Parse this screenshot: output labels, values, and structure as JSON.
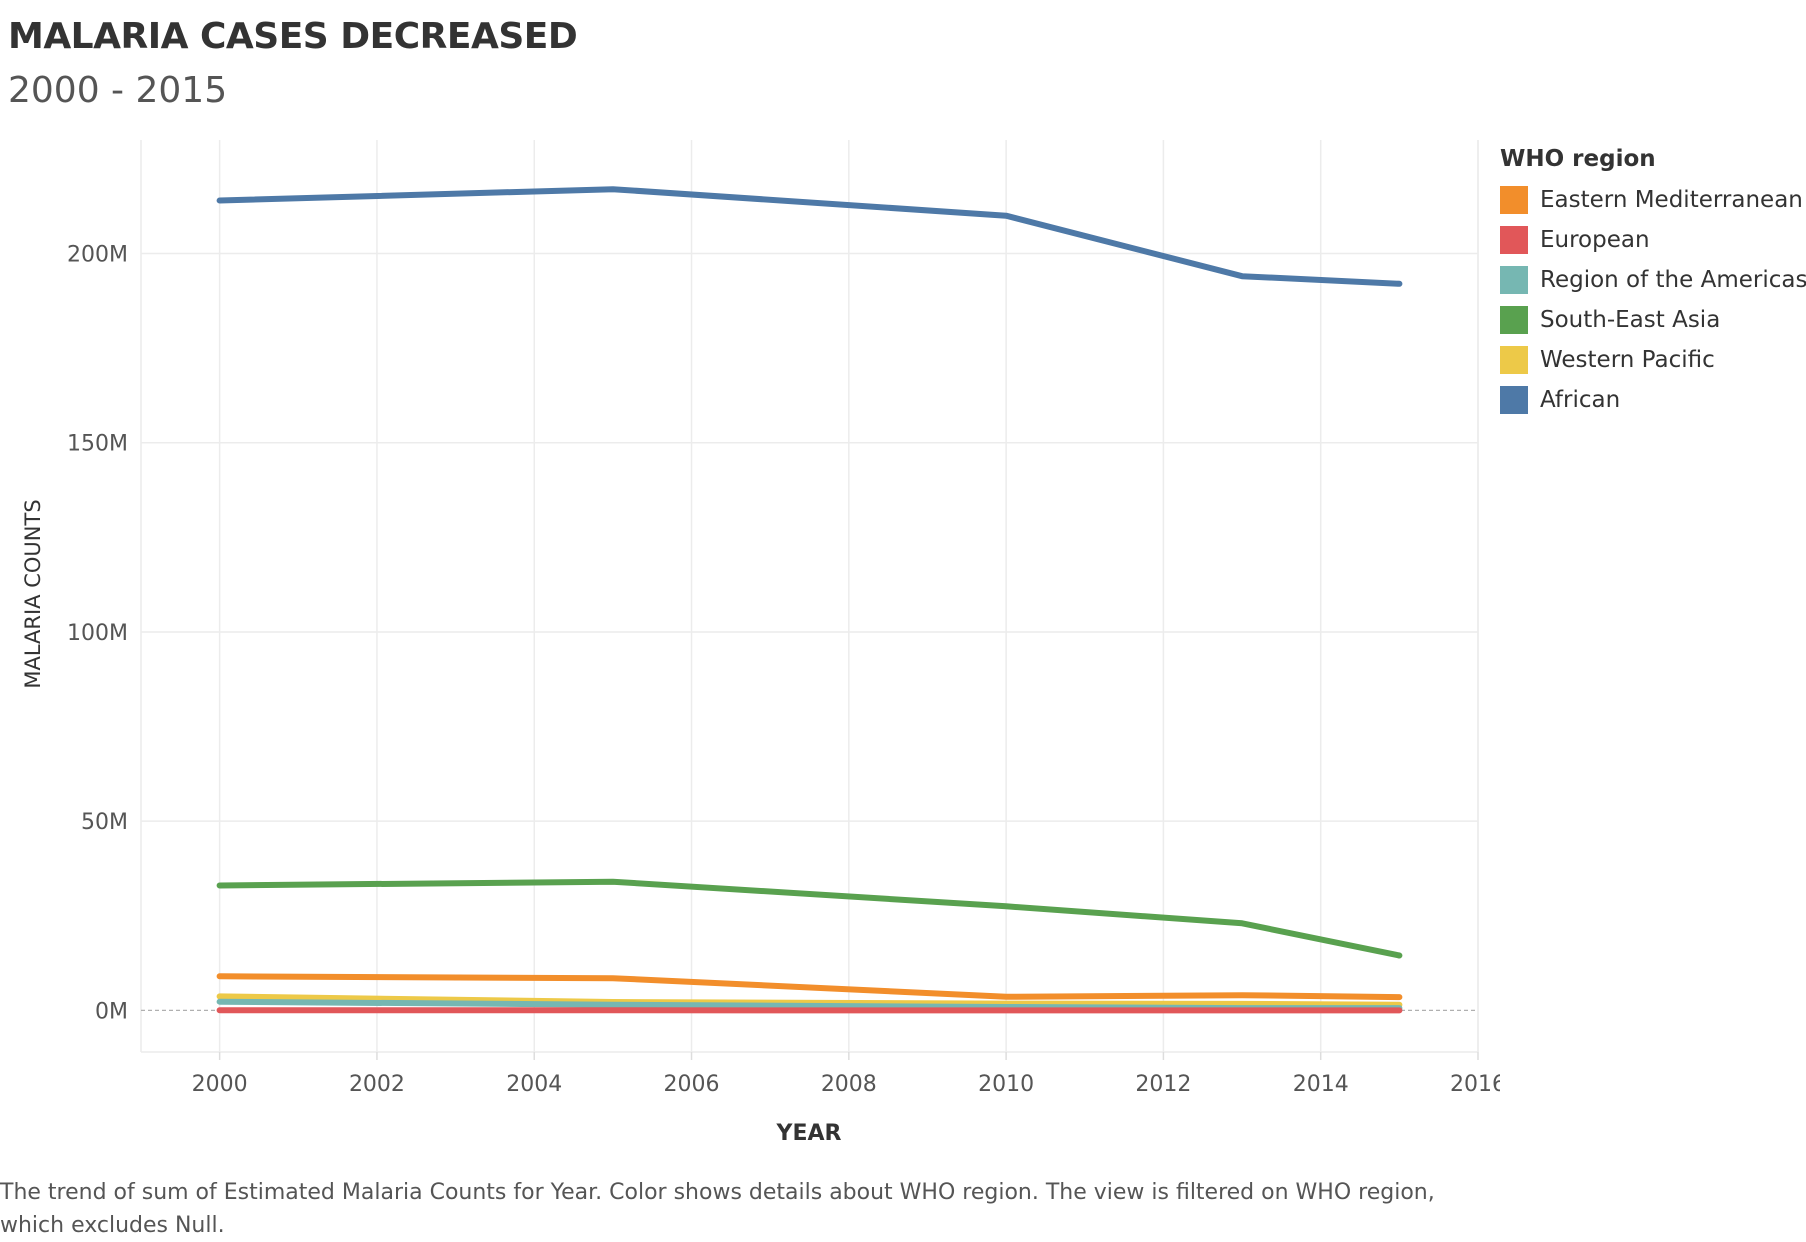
{
  "title": "MALARIA CASES DECREASED",
  "subtitle": "2000 - 2015",
  "caption": "The trend of sum of Estimated Malaria Counts for Year.  Color shows details about WHO region. The view is filtered on WHO region, which excludes Null.",
  "chart_data": {
    "type": "line",
    "xlabel": "YEAR",
    "ylabel": "MALARIA COUNTS",
    "xlim": [
      1999,
      2016
    ],
    "ylim": [
      -11,
      230
    ],
    "x_ticks": [
      2000,
      2002,
      2004,
      2006,
      2008,
      2010,
      2012,
      2014,
      2016
    ],
    "y_ticks": [
      0,
      50,
      100,
      150,
      200
    ],
    "y_tick_labels": [
      "0M",
      "50M",
      "100M",
      "150M",
      "200M"
    ],
    "y_unit": "millions",
    "grid": true,
    "legend_title": "WHO region",
    "legend_position": "right",
    "x": [
      2000,
      2005,
      2010,
      2013,
      2015
    ],
    "series": [
      {
        "name": "Eastern Mediterranean",
        "color": "#F28E2B",
        "values": [
          9.0,
          8.5,
          3.6,
          4.0,
          3.5
        ]
      },
      {
        "name": "European",
        "color": "#E15759",
        "values": [
          0.03,
          0.01,
          0.0,
          0.0,
          0.0
        ]
      },
      {
        "name": "Region of the Americas",
        "color": "#76B7B2",
        "values": [
          2.3,
          1.5,
          0.9,
          0.6,
          0.6
        ]
      },
      {
        "name": "South-East Asia",
        "color": "#59A14F",
        "values": [
          33.0,
          34.0,
          27.5,
          23.0,
          14.5
        ]
      },
      {
        "name": "Western Pacific",
        "color": "#EDC948",
        "values": [
          3.7,
          2.2,
          1.8,
          1.7,
          1.5
        ]
      },
      {
        "name": "African",
        "color": "#4E79A7",
        "values": [
          214.0,
          217.0,
          210.0,
          194.0,
          192.0
        ]
      }
    ],
    "draw_order": [
      "African",
      "South-East Asia",
      "Eastern Mediterranean",
      "Western Pacific",
      "Region of the Americas",
      "European"
    ]
  }
}
